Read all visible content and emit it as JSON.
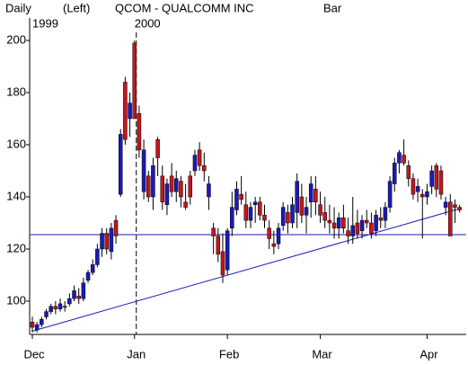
{
  "chart_data": {
    "type": "candlestick",
    "header": [
      "Daily",
      "(Left)",
      "QCOM - QUALCOMM INC",
      "Bar"
    ],
    "categories": [
      "Dec",
      null,
      null,
      null,
      null,
      null,
      null,
      null,
      null,
      null,
      null,
      null,
      null,
      null,
      null,
      null,
      null,
      null,
      null,
      null,
      null,
      null,
      "Jan",
      null,
      null,
      null,
      null,
      null,
      null,
      null,
      null,
      null,
      null,
      null,
      null,
      null,
      null,
      null,
      null,
      null,
      null,
      null,
      "Feb",
      null,
      null,
      null,
      null,
      null,
      null,
      null,
      null,
      null,
      null,
      null,
      null,
      null,
      null,
      null,
      null,
      null,
      null,
      null,
      "Mar",
      null,
      null,
      null,
      null,
      null,
      null,
      null,
      null,
      null,
      null,
      null,
      null,
      null,
      null,
      null,
      null,
      null,
      null,
      null,
      null,
      null,
      null,
      "Apr",
      null,
      null,
      null,
      null,
      null,
      null,
      null
    ],
    "category_years": [
      "1999",
      null,
      null,
      null,
      null,
      null,
      null,
      null,
      null,
      null,
      null,
      null,
      null,
      null,
      null,
      null,
      null,
      null,
      null,
      null,
      null,
      null,
      "2000",
      null,
      null,
      null,
      null,
      null,
      null,
      null,
      null,
      null,
      null,
      null,
      null,
      null,
      null,
      null,
      null,
      null,
      null,
      null,
      null,
      null,
      null,
      null,
      null,
      null,
      null,
      null,
      null,
      null,
      null,
      null,
      null,
      null,
      null,
      null,
      null,
      null,
      null,
      null,
      null,
      null,
      null,
      null,
      null,
      null,
      null,
      null,
      null,
      null,
      null,
      null,
      null,
      null,
      null,
      null,
      null,
      null,
      null,
      null,
      null,
      null,
      null,
      null,
      null,
      null,
      null,
      null,
      null,
      null,
      null
    ],
    "open": [
      92,
      89,
      91,
      94,
      96,
      98,
      97,
      98,
      99,
      101,
      102,
      101,
      108,
      111,
      114,
      120,
      126,
      119,
      131,
      141,
      184,
      170,
      199,
      172,
      142,
      148,
      140,
      162,
      148,
      137,
      148,
      142,
      146,
      138,
      148,
      150,
      158,
      152,
      140,
      128,
      125,
      119,
      112,
      128,
      135,
      141,
      137,
      131,
      137,
      138,
      133,
      128,
      122,
      122,
      129,
      134,
      130,
      134,
      140,
      133,
      138,
      143,
      137,
      134,
      131,
      130,
      128,
      132,
      127,
      125,
      130,
      127,
      131,
      130,
      127,
      132,
      131,
      136,
      145,
      153,
      156,
      152,
      147,
      142,
      141,
      140,
      144,
      152,
      150,
      136,
      138,
      137,
      136
    ],
    "high": [
      94,
      92,
      94,
      97,
      99,
      100,
      101,
      100,
      103,
      106,
      105,
      109,
      112,
      116,
      122,
      128,
      128,
      130,
      133,
      166,
      186,
      180,
      200,
      175,
      162,
      150,
      155,
      163,
      152,
      147,
      153,
      150,
      148,
      145,
      150,
      158,
      161,
      157,
      148,
      130,
      128,
      126,
      128,
      142,
      146,
      148,
      142,
      138,
      140,
      140,
      137,
      131,
      127,
      130,
      138,
      137,
      140,
      149,
      145,
      140,
      148,
      148,
      142,
      140,
      137,
      136,
      134,
      137,
      132,
      140,
      135,
      133,
      135,
      134,
      135,
      136,
      138,
      148,
      155,
      158,
      162,
      154,
      149,
      147,
      143,
      145,
      152,
      153,
      152,
      140,
      141,
      139,
      137
    ],
    "low": [
      88,
      88,
      90,
      93,
      95,
      95,
      96,
      96,
      98,
      100,
      99,
      100,
      107,
      110,
      113,
      117,
      118,
      116,
      122,
      140,
      160,
      163,
      170,
      155,
      139,
      138,
      135,
      148,
      135,
      133,
      140,
      138,
      136,
      135,
      137,
      148,
      150,
      146,
      135,
      118,
      115,
      107,
      110,
      125,
      133,
      137,
      128,
      128,
      130,
      131,
      128,
      120,
      118,
      120,
      127,
      126,
      128,
      128,
      130,
      126,
      132,
      133,
      130,
      128,
      126,
      124,
      124,
      126,
      122,
      122,
      124,
      124,
      128,
      124,
      125,
      128,
      128,
      134,
      142,
      149,
      152,
      144,
      139,
      138,
      124,
      137,
      141,
      140,
      139,
      133,
      125,
      130,
      134
    ],
    "close": [
      90,
      91,
      93,
      96,
      98,
      97,
      99,
      98,
      101,
      104,
      101,
      107,
      111,
      114,
      120,
      126,
      120,
      128,
      125,
      164,
      162,
      176,
      170,
      158,
      158,
      140,
      152,
      155,
      138,
      145,
      142,
      147,
      140,
      136,
      140,
      156,
      152,
      150,
      145,
      125,
      118,
      110,
      127,
      136,
      143,
      139,
      131,
      136,
      138,
      133,
      131,
      124,
      121,
      128,
      136,
      130,
      137,
      146,
      133,
      136,
      145,
      138,
      133,
      131,
      130,
      128,
      132,
      128,
      125,
      129,
      126,
      131,
      130,
      126,
      133,
      131,
      136,
      146,
      153,
      157,
      153,
      147,
      141,
      144,
      140,
      142,
      150,
      143,
      141,
      138,
      125,
      136,
      135
    ],
    "up_color": "#1a1ab8",
    "down_color": "#c4161c",
    "line_color": "#1a1ab8",
    "hline": 125.5,
    "trendline": [
      88.5,
      135.5
    ],
    "ylim": [
      88,
      208
    ],
    "yticks": [
      100,
      120,
      140,
      160,
      180,
      200
    ]
  }
}
